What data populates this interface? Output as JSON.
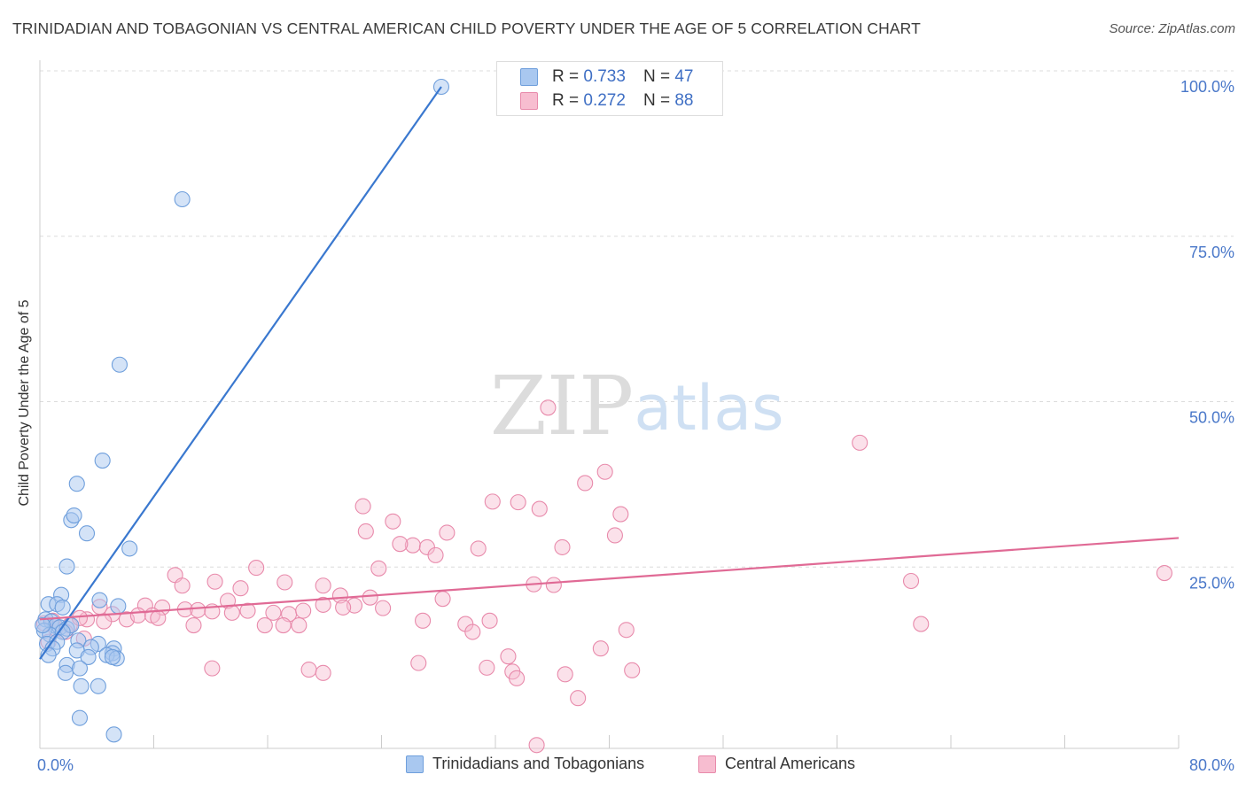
{
  "title": "TRINIDADIAN AND TOBAGONIAN VS CENTRAL AMERICAN CHILD POVERTY UNDER THE AGE OF 5 CORRELATION CHART",
  "source": "Source: ZipAtlas.com",
  "watermark": {
    "zip": "ZIP",
    "atlas": "atlas"
  },
  "legend": {
    "rows": [
      {
        "r_label": "R = ",
        "r_value": "0.733",
        "n_label": "N = ",
        "n_value": "47"
      },
      {
        "r_label": "R = ",
        "r_value": "0.272",
        "n_label": "N = ",
        "n_value": "88"
      }
    ]
  },
  "bottom_legend": [
    "Trinidadians and Tobagonians",
    "Central Americans"
  ],
  "colors": {
    "blue_fill": "#a9c8f0",
    "blue_stroke": "#6f9fdc",
    "blue_line": "#3a78cf",
    "pink_fill": "#f7bdd0",
    "pink_stroke": "#e88aab",
    "pink_line": "#e06a95",
    "tick_text": "#4a78c9",
    "grid": "#dcdcdc"
  },
  "chart_data": {
    "type": "scatter",
    "title": "TRINIDADIAN AND TOBAGONIAN VS CENTRAL AMERICAN CHILD POVERTY UNDER THE AGE OF 5 CORRELATION CHART",
    "xlabel": "",
    "ylabel": "Child Poverty Under the Age of 5",
    "xlim": [
      0,
      80
    ],
    "ylim": [
      0,
      100
    ],
    "x_tick_labels": [
      "0.0%",
      "80.0%"
    ],
    "y_tick_values": [
      25,
      50,
      75,
      100
    ],
    "y_tick_labels": [
      "25.0%",
      "50.0%",
      "75.0%",
      "100.0%"
    ],
    "series": [
      {
        "name": "Trinidadians and Tobagonians",
        "R": 0.733,
        "N": 47,
        "trend": [
          [
            0,
            13.5
          ],
          [
            28.2,
            100
          ]
        ],
        "points": [
          [
            28.2,
            100
          ],
          [
            10,
            83
          ],
          [
            5.6,
            58
          ],
          [
            4.4,
            43.5
          ],
          [
            2.6,
            40
          ],
          [
            2.2,
            34.5
          ],
          [
            2.4,
            35.2
          ],
          [
            3.3,
            32.5
          ],
          [
            6.3,
            30.2
          ],
          [
            1.9,
            27.5
          ],
          [
            1.5,
            23.2
          ],
          [
            0.6,
            21.8
          ],
          [
            1.2,
            21.8
          ],
          [
            1.6,
            21.3
          ],
          [
            4.2,
            22.4
          ],
          [
            5.5,
            21.5
          ],
          [
            0.4,
            19.5
          ],
          [
            0.8,
            19.2
          ],
          [
            1.1,
            18.5
          ],
          [
            1.4,
            18.3
          ],
          [
            1.9,
            18.1
          ],
          [
            2.2,
            18.6
          ],
          [
            0.3,
            17.8
          ],
          [
            0.7,
            17.2
          ],
          [
            1.6,
            17.6
          ],
          [
            2.7,
            16.3
          ],
          [
            0.5,
            15.8
          ],
          [
            1.2,
            16.1
          ],
          [
            4.1,
            15.8
          ],
          [
            3.6,
            15.3
          ],
          [
            5.2,
            15.1
          ],
          [
            0.9,
            15.1
          ],
          [
            2.6,
            14.8
          ],
          [
            5.1,
            14.4
          ],
          [
            4.7,
            14.1
          ],
          [
            0.6,
            14.1
          ],
          [
            3.4,
            13.8
          ],
          [
            5.4,
            13.6
          ],
          [
            5.1,
            13.8
          ],
          [
            1.9,
            12.6
          ],
          [
            1.8,
            11.4
          ],
          [
            2.8,
            12.1
          ],
          [
            2.9,
            9.4
          ],
          [
            4.1,
            9.4
          ],
          [
            2.8,
            4.6
          ],
          [
            5.2,
            2.1
          ],
          [
            0.2,
            18.6
          ]
        ]
      },
      {
        "name": "Central Americans",
        "R": 0.272,
        "N": 88,
        "trend": [
          [
            0,
            19.5
          ],
          [
            80,
            31.8
          ]
        ],
        "points": [
          [
            35.7,
            51.5
          ],
          [
            57.6,
            46.2
          ],
          [
            39.7,
            41.8
          ],
          [
            38.3,
            40.1
          ],
          [
            33.6,
            37.2
          ],
          [
            31.8,
            37.3
          ],
          [
            22.7,
            36.6
          ],
          [
            35.1,
            36.2
          ],
          [
            40.8,
            35.4
          ],
          [
            24.8,
            34.3
          ],
          [
            28.6,
            32.6
          ],
          [
            22.9,
            32.8
          ],
          [
            40.4,
            32.2
          ],
          [
            26.2,
            30.7
          ],
          [
            25.3,
            30.9
          ],
          [
            27.2,
            30.4
          ],
          [
            30.8,
            30.2
          ],
          [
            36.7,
            30.4
          ],
          [
            27.8,
            29.2
          ],
          [
            15.2,
            27.3
          ],
          [
            23.8,
            27.2
          ],
          [
            79,
            26.5
          ],
          [
            9.5,
            26.2
          ],
          [
            61.2,
            25.3
          ],
          [
            12.3,
            25.2
          ],
          [
            17.2,
            25.1
          ],
          [
            10,
            24.6
          ],
          [
            34.7,
            24.8
          ],
          [
            36.1,
            24.7
          ],
          [
            19.9,
            24.6
          ],
          [
            14.1,
            24.2
          ],
          [
            21.1,
            23.1
          ],
          [
            23.2,
            22.8
          ],
          [
            28.3,
            22.6
          ],
          [
            13.2,
            22.3
          ],
          [
            4.2,
            21.4
          ],
          [
            7.4,
            21.6
          ],
          [
            8.6,
            21.3
          ],
          [
            10.2,
            21
          ],
          [
            11.1,
            20.9
          ],
          [
            12.1,
            20.7
          ],
          [
            13.5,
            20.5
          ],
          [
            14.6,
            20.8
          ],
          [
            16.4,
            20.5
          ],
          [
            17.5,
            20.3
          ],
          [
            18.5,
            20.8
          ],
          [
            19.9,
            21.7
          ],
          [
            22.1,
            21.6
          ],
          [
            21.3,
            21.3
          ],
          [
            24.1,
            21.2
          ],
          [
            5.1,
            20.3
          ],
          [
            6.1,
            19.5
          ],
          [
            6.9,
            20.1
          ],
          [
            7.9,
            20.1
          ],
          [
            8.3,
            19.7
          ],
          [
            3.3,
            19.5
          ],
          [
            4.5,
            19.2
          ],
          [
            2.1,
            18.6
          ],
          [
            1.1,
            18.1
          ],
          [
            1.8,
            17.6
          ],
          [
            3.1,
            16.6
          ],
          [
            0.6,
            16.1
          ],
          [
            0.9,
            19.3
          ],
          [
            10.8,
            18.6
          ],
          [
            15.8,
            18.6
          ],
          [
            18.2,
            18.6
          ],
          [
            17.1,
            18.6
          ],
          [
            26.9,
            19.3
          ],
          [
            29.9,
            18.8
          ],
          [
            31.6,
            19.3
          ],
          [
            30.4,
            17.6
          ],
          [
            41.2,
            17.9
          ],
          [
            61.9,
            18.8
          ],
          [
            0.3,
            18.9
          ],
          [
            39.4,
            15.1
          ],
          [
            12.1,
            12.1
          ],
          [
            18.9,
            11.9
          ],
          [
            19.9,
            11.4
          ],
          [
            26.6,
            12.9
          ],
          [
            31.4,
            12.2
          ],
          [
            33.2,
            11.6
          ],
          [
            32.9,
            13.9
          ],
          [
            41.6,
            11.8
          ],
          [
            36.9,
            11.2
          ],
          [
            33.5,
            10.6
          ],
          [
            37.8,
            7.6
          ],
          [
            34.9,
            0.5
          ],
          [
            2.8,
            19.7
          ]
        ]
      }
    ]
  }
}
